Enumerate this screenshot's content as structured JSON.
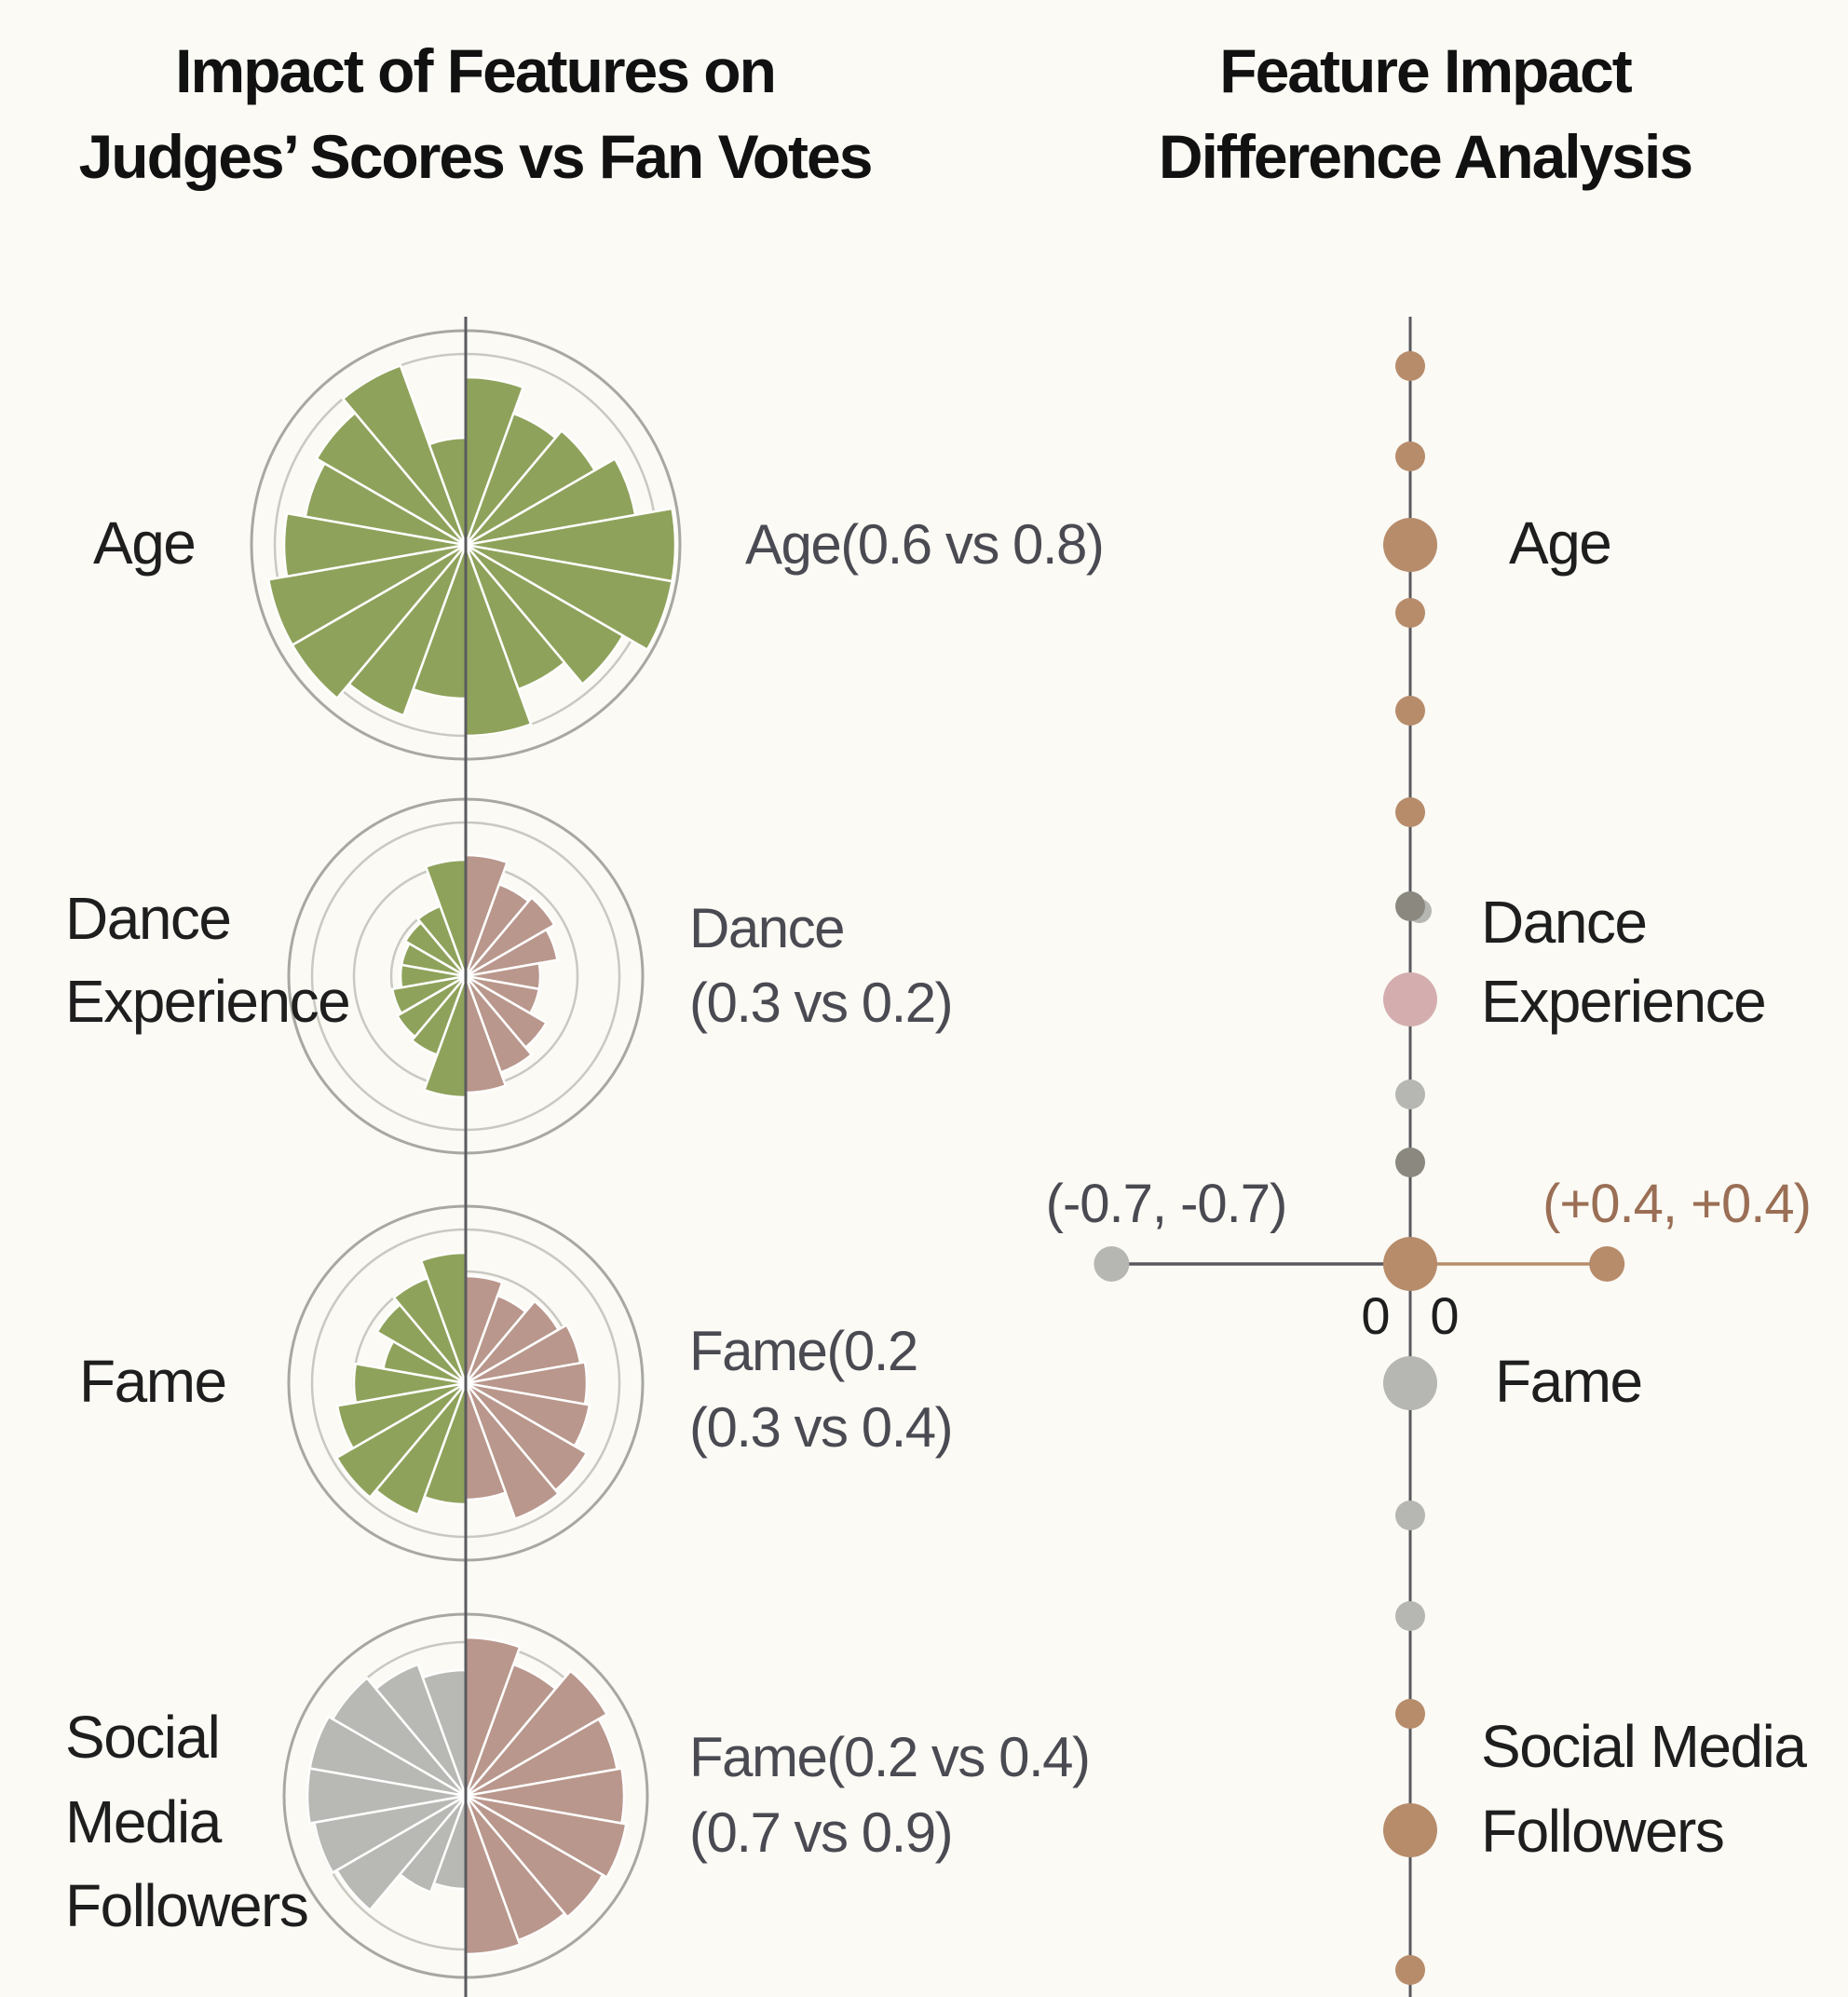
{
  "chart_data": [
    {
      "type": "polar-bar",
      "title": [
        "Impact of Features on",
        "Judges’ Scores vs Fan Votes"
      ],
      "features": [
        {
          "label_lines": [
            "Age"
          ],
          "annotation_lines": [
            "Age(0.6 vs 0.8)"
          ],
          "left_color": "#8fa25b",
          "right_color": "#8fa25b"
        },
        {
          "label_lines": [
            "Dance",
            "Experience"
          ],
          "annotation_lines": [
            "Dance",
            "(0.3 vs 0.2)"
          ],
          "left_color": "#8fa25b",
          "right_color": "#b9978c"
        },
        {
          "label_lines": [
            "Fame"
          ],
          "annotation_lines": [
            "Fame(0.2",
            "(0.3 vs 0.4)"
          ],
          "left_color": "#8fa25b",
          "right_color": "#b9978c"
        },
        {
          "label_lines": [
            "Social",
            "Media",
            "Followers"
          ],
          "annotation_lines": [
            "Fame(0.2 vs 0.4)",
            "(0.7 vs 0.9)"
          ],
          "left_color": "#b8b8b4",
          "right_color": "#b9978c"
        }
      ]
    },
    {
      "type": "dot-axis",
      "title": [
        "Feature Impact",
        "Difference Analysis"
      ],
      "feature_labels": [
        {
          "lines": [
            "Age"
          ]
        },
        {
          "lines": [
            "Dance",
            "Experience"
          ]
        },
        {
          "lines": [
            "Fame"
          ]
        },
        {
          "lines": [
            "Social Media",
            "Followers"
          ]
        }
      ],
      "crossbar": {
        "left_label": "(-0.7, -0.7)",
        "right_label": "(+0.4, +0.4)",
        "zero_labels": [
          "0",
          "0"
        ],
        "left_value": -0.7,
        "right_value": 0.4
      },
      "colors": {
        "brown": "#b78c6b",
        "dark": "#8b8880",
        "gray": "#b6b6b2",
        "pink": "#d4aeae",
        "axis": "#5a5a5e",
        "label_brown": "#9a6f55"
      }
    }
  ]
}
